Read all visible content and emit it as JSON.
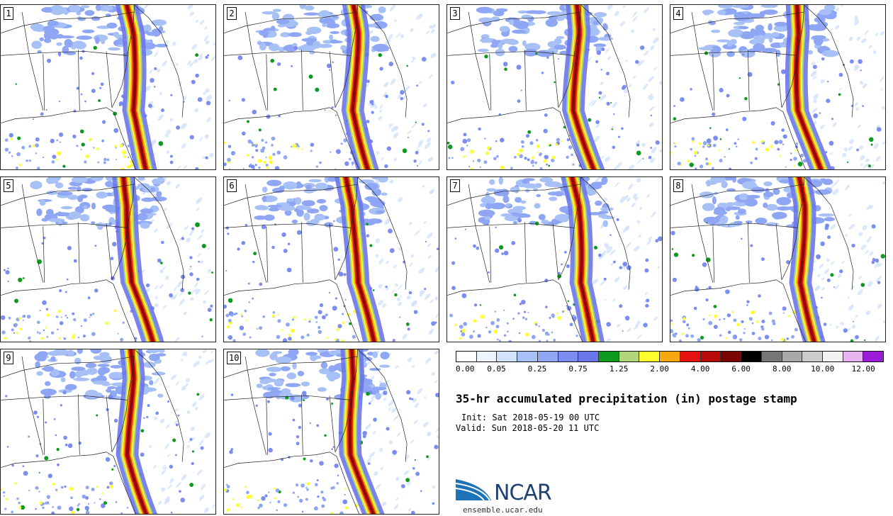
{
  "panels": [
    {
      "label": "1"
    },
    {
      "label": "2"
    },
    {
      "label": "3"
    },
    {
      "label": "4"
    },
    {
      "label": "5"
    },
    {
      "label": "6"
    },
    {
      "label": "7"
    },
    {
      "label": "8"
    },
    {
      "label": "9"
    },
    {
      "label": "10"
    }
  ],
  "colorbar": {
    "colors": [
      "#ffffff",
      "#ebf4ff",
      "#d2e2fb",
      "#a7c0f5",
      "#8ea6f3",
      "#7b8df0",
      "#6b75ea",
      "#0d9a1f",
      "#b1d77a",
      "#ffff2e",
      "#f7a80f",
      "#e51010",
      "#b90a0a",
      "#7a0505",
      "#000000",
      "#767676",
      "#a9a9a9",
      "#cccccc",
      "#f1f1f1",
      "#e7b3f0",
      "#9a1bd8"
    ],
    "labels": [
      "0.00",
      "0.05",
      "0.25",
      "0.75",
      "1.25",
      "2.00",
      "4.00",
      "6.00",
      "8.00",
      "10.00",
      "12.00"
    ]
  },
  "title": "35-hr accumulated precipitation (in) postage stamp",
  "init": "Init: Sat 2018-05-19 00 UTC",
  "valid": "Valid: Sun 2018-05-20 11 UTC",
  "logo": {
    "text": "NCAR",
    "site": "ensemble.ucar.edu",
    "color": "#1f3f75",
    "swoosh_color": "#1d72b8"
  }
}
